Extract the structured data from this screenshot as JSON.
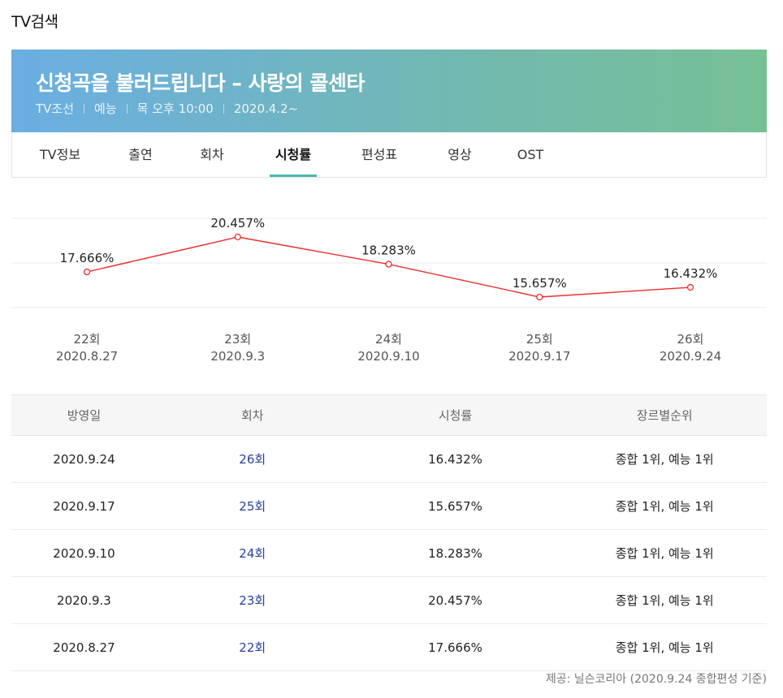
{
  "page": {
    "heading": "TV검색"
  },
  "program": {
    "title": "신청곡을 불러드립니다 – 사랑의 콜센타",
    "meta": [
      "TV조선",
      "예능",
      "목 오후 10:00",
      "2020.4.2~"
    ]
  },
  "tabs": [
    {
      "label": "TV정보",
      "active": false
    },
    {
      "label": "출연",
      "active": false
    },
    {
      "label": "회차",
      "active": false
    },
    {
      "label": "시청률",
      "active": true
    },
    {
      "label": "편성표",
      "active": false
    },
    {
      "label": "영상",
      "active": false
    },
    {
      "label": "OST",
      "active": false
    }
  ],
  "chart_data": {
    "type": "line",
    "categories": [
      "22회",
      "23회",
      "24회",
      "25회",
      "26회"
    ],
    "dates": [
      "2020.8.27",
      "2020.9.3",
      "2020.9.10",
      "2020.9.17",
      "2020.9.24"
    ],
    "values": [
      17.666,
      20.457,
      18.283,
      15.657,
      16.432
    ],
    "data_labels": [
      "17.666%",
      "20.457%",
      "18.283%",
      "15.657%",
      "16.432%"
    ],
    "unit": "%",
    "grid": true,
    "line_color": "#ee2b2b"
  },
  "table": {
    "headers": [
      "방영일",
      "회차",
      "시청률",
      "장르별순위"
    ],
    "rows": [
      {
        "date": "2020.9.24",
        "episode": "26회",
        "rating": "16.432%",
        "rank": "종합 1위, 예능 1위"
      },
      {
        "date": "2020.9.17",
        "episode": "25회",
        "rating": "15.657%",
        "rank": "종합 1위, 예능 1위"
      },
      {
        "date": "2020.9.10",
        "episode": "24회",
        "rating": "18.283%",
        "rank": "종합 1위, 예능 1위"
      },
      {
        "date": "2020.9.3",
        "episode": "23회",
        "rating": "20.457%",
        "rank": "종합 1위, 예능 1위"
      },
      {
        "date": "2020.8.27",
        "episode": "22회",
        "rating": "17.666%",
        "rank": "종합 1위, 예능 1위"
      }
    ]
  },
  "footer": {
    "note": "제공: 닐슨코리아 (2020.9.24 종합편성 기준)"
  },
  "colors": {
    "accent": "#4bb8b0",
    "link": "#2a3f9e",
    "banner_start": "#6aaee3",
    "banner_end": "#76c095"
  }
}
